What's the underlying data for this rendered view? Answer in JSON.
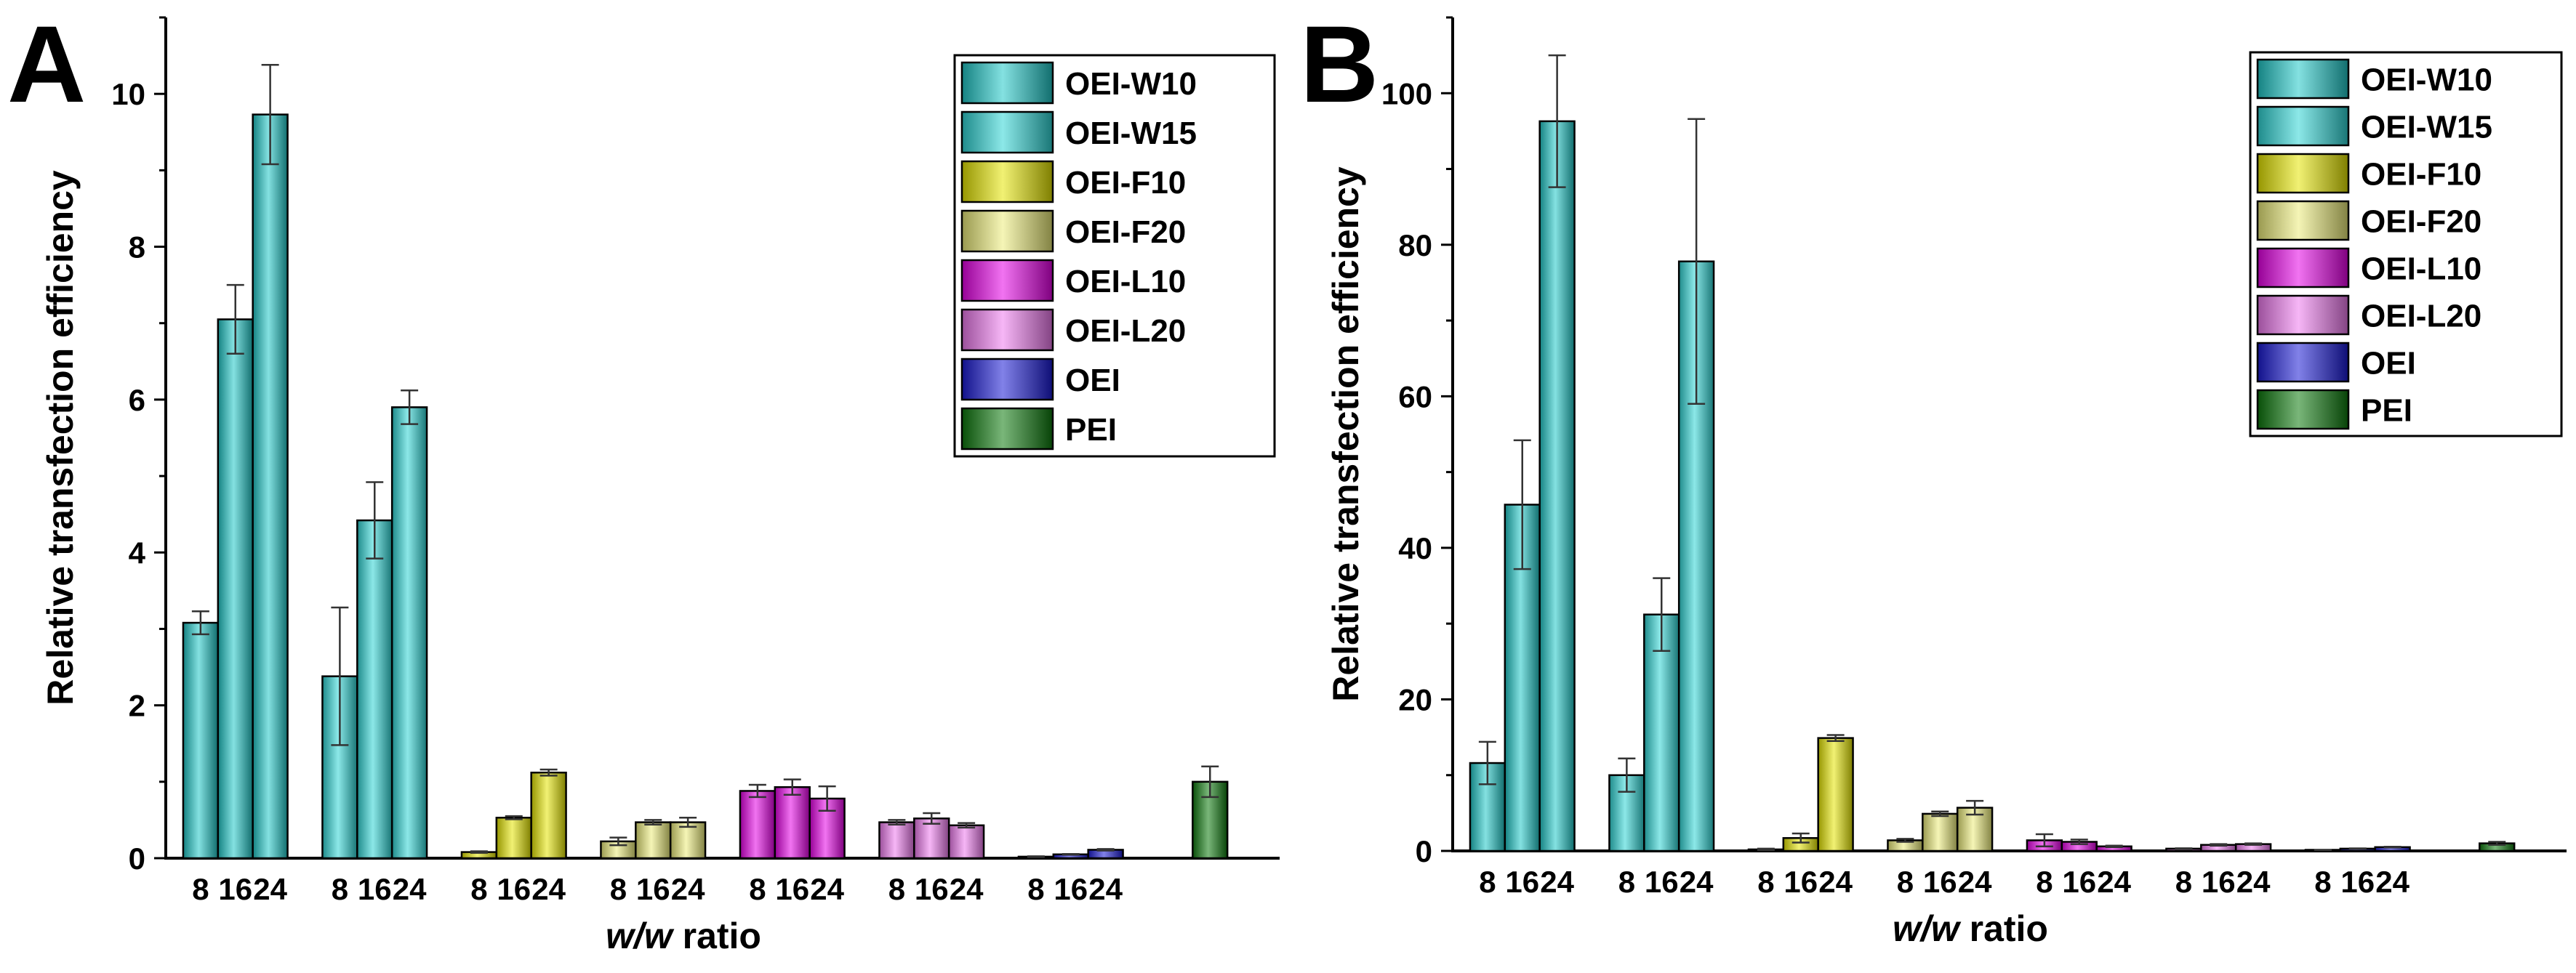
{
  "figure": {
    "colors": {
      "OEI-W10": "#1fc8c8",
      "OEI-W15": "#2ed6d6",
      "OEI-F10": "#e6e600",
      "OEI-F20": "#ecec7a",
      "OEI-L10": "#e600e6",
      "OEI-L20": "#ee7aee",
      "OEI": "#1a1ad6",
      "PEI": "#0c7a0c"
    }
  },
  "chart_data": [
    {
      "panel": "A",
      "type": "bar",
      "ylabel": "Relative transfection efficiency",
      "xlabel_italic": "w/w",
      "xlabel_rest": " ratio",
      "ylim": [
        0,
        11
      ],
      "yticks": [
        "0",
        "2",
        "4",
        "6",
        "8",
        "10"
      ],
      "ytick_values": [
        0,
        2,
        4,
        6,
        8,
        10
      ],
      "legend_position": "top-right",
      "legend": [
        "OEI-W10",
        "OEI-W15",
        "OEI-F10",
        "OEI-F20",
        "OEI-L10",
        "OEI-L20",
        "OEI",
        "PEI"
      ],
      "groups": [
        {
          "series": "OEI-W10",
          "ratios": [
            "8",
            "16",
            "24"
          ],
          "values": [
            3.08,
            7.05,
            9.73
          ],
          "errors": [
            0.15,
            0.45,
            0.65
          ]
        },
        {
          "series": "OEI-W15",
          "ratios": [
            "8",
            "16",
            "24"
          ],
          "values": [
            2.38,
            4.42,
            5.9
          ],
          "errors": [
            0.9,
            0.5,
            0.22
          ]
        },
        {
          "series": "OEI-F10",
          "ratios": [
            "8",
            "16",
            "24"
          ],
          "values": [
            0.08,
            0.53,
            1.12
          ],
          "errors": [
            0.01,
            0.02,
            0.04
          ]
        },
        {
          "series": "OEI-F20",
          "ratios": [
            "8",
            "16",
            "24"
          ],
          "values": [
            0.22,
            0.47,
            0.47
          ],
          "errors": [
            0.05,
            0.03,
            0.06
          ]
        },
        {
          "series": "OEI-L10",
          "ratios": [
            "8",
            "16",
            "24"
          ],
          "values": [
            0.88,
            0.93,
            0.78
          ],
          "errors": [
            0.08,
            0.1,
            0.16
          ]
        },
        {
          "series": "OEI-L20",
          "ratios": [
            "8",
            "16",
            "24"
          ],
          "values": [
            0.47,
            0.52,
            0.43
          ],
          "errors": [
            0.03,
            0.07,
            0.03
          ]
        },
        {
          "series": "OEI",
          "ratios": [
            "8",
            "16",
            "24"
          ],
          "values": [
            0.02,
            0.05,
            0.11
          ],
          "errors": [
            0.005,
            0.005,
            0.01
          ]
        },
        {
          "series": "PEI",
          "ratios": [],
          "values": [
            1.0
          ],
          "errors": [
            0.2
          ]
        }
      ]
    },
    {
      "panel": "B",
      "type": "bar",
      "ylabel": "Relative transfection efficiency",
      "xlabel_italic": "w/w",
      "xlabel_rest": " ratio",
      "ylim": [
        0,
        110
      ],
      "yticks": [
        "0",
        "20",
        "40",
        "60",
        "80",
        "100"
      ],
      "ytick_values": [
        0,
        20,
        40,
        60,
        80,
        100
      ],
      "legend_position": "top-right",
      "legend": [
        "OEI-W10",
        "OEI-W15",
        "OEI-F10",
        "OEI-F20",
        "OEI-L10",
        "OEI-L20",
        "OEI",
        "PEI"
      ],
      "groups": [
        {
          "series": "OEI-W10",
          "ratios": [
            "8",
            "16",
            "24"
          ],
          "values": [
            11.6,
            45.7,
            96.3
          ],
          "errors": [
            2.8,
            8.5,
            8.7
          ]
        },
        {
          "series": "OEI-W15",
          "ratios": [
            "8",
            "16",
            "24"
          ],
          "values": [
            10.0,
            31.2,
            77.8
          ],
          "errors": [
            2.2,
            4.8,
            18.8
          ]
        },
        {
          "series": "OEI-F10",
          "ratios": [
            "8",
            "16",
            "24"
          ],
          "values": [
            0.2,
            1.7,
            14.9
          ],
          "errors": [
            0.1,
            0.6,
            0.4
          ]
        },
        {
          "series": "OEI-F20",
          "ratios": [
            "8",
            "16",
            "24"
          ],
          "values": [
            1.4,
            4.9,
            5.7
          ],
          "errors": [
            0.2,
            0.3,
            0.9
          ]
        },
        {
          "series": "OEI-L10",
          "ratios": [
            "8",
            "16",
            "24"
          ],
          "values": [
            1.4,
            1.2,
            0.6
          ],
          "errors": [
            0.8,
            0.3,
            0.1
          ]
        },
        {
          "series": "OEI-L20",
          "ratios": [
            "8",
            "16",
            "24"
          ],
          "values": [
            0.3,
            0.8,
            0.9
          ],
          "errors": [
            0.05,
            0.1,
            0.1
          ]
        },
        {
          "series": "OEI",
          "ratios": [
            "8",
            "16",
            "24"
          ],
          "values": [
            0.1,
            0.3,
            0.5
          ],
          "errors": [
            0.02,
            0.03,
            0.05
          ]
        },
        {
          "series": "PEI",
          "ratios": [],
          "values": [
            1.0
          ],
          "errors": [
            0.2
          ]
        }
      ]
    }
  ]
}
